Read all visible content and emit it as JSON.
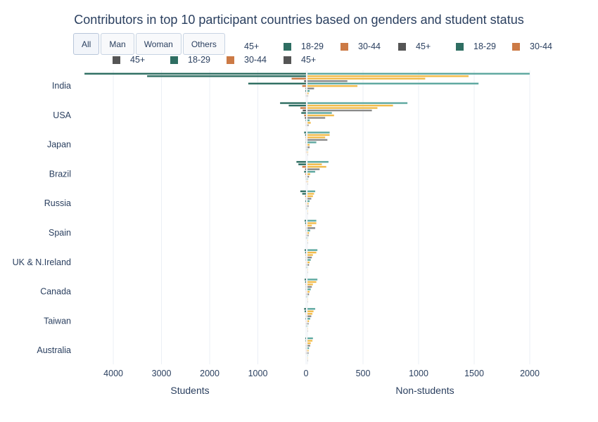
{
  "title": "Contributors in top 10 participant countries based on genders and student status",
  "buttons": [
    {
      "label": "All",
      "active": true
    },
    {
      "label": "Man",
      "active": false
    },
    {
      "label": "Woman",
      "active": false
    },
    {
      "label": "Others",
      "active": false
    }
  ],
  "colors": {
    "age_18_29": "#2e6e62",
    "age_30_44": "#cc7a45",
    "age_45_plus": "#555555",
    "stripe_light_teal": "#5ea8a0",
    "stripe_yellow": "#f2bb4a",
    "stripe_gray": "#8a8a8a"
  },
  "legend": [
    {
      "label": "45+",
      "color": "#555555",
      "row": 1
    },
    {
      "label": "18-29",
      "color": "#2e6e62",
      "row": 1
    },
    {
      "label": "30-44",
      "color": "#cc7a45",
      "row": 1
    },
    {
      "label": "45+",
      "color": "#555555",
      "row": 1
    },
    {
      "label": "18-29",
      "color": "#2e6e62",
      "row": 1
    },
    {
      "label": "30-44",
      "color": "#cc7a45",
      "row": 1
    },
    {
      "label": "45+",
      "color": "#555555",
      "row": 2
    },
    {
      "label": "18-29",
      "color": "#2e6e62",
      "row": 2
    },
    {
      "label": "30-44",
      "color": "#cc7a45",
      "row": 2
    },
    {
      "label": "45+",
      "color": "#555555",
      "row": 2
    }
  ],
  "chart_data": {
    "type": "bar",
    "orientation": "horizontal",
    "title": "Contributors in top 10 participant countries based on genders and student status",
    "categories": [
      "India",
      "USA",
      "Japan",
      "Brazil",
      "Russia",
      "Spain",
      "UK & N.Ireland",
      "Canada",
      "Taiwan",
      "Australia"
    ],
    "left_axis": {
      "label": "Students",
      "range": [
        4600,
        0
      ],
      "ticks": [
        4000,
        3000,
        2000,
        1000,
        0
      ],
      "tick_labels": [
        "4000",
        "3000",
        "2000",
        "1000",
        "0"
      ]
    },
    "right_axis": {
      "label": "Non-students",
      "range": [
        0,
        2000
      ],
      "ticks": [
        0,
        500,
        1000,
        1500,
        2000
      ],
      "tick_labels": [
        "0",
        "500",
        "1000",
        "1500",
        "2000"
      ]
    },
    "grid": true,
    "legend_position": "top",
    "series_order": [
      "all_total",
      "man_18_29",
      "man_30_44",
      "man_45_plus",
      "woman_18_29",
      "woman_30_44",
      "woman_45_plus",
      "others_18_29",
      "others_30_44",
      "others_45_plus"
    ],
    "students": {
      "India": [
        4600,
        3300,
        300,
        40,
        1200,
        80,
        10,
        15,
        5,
        2
      ],
      "USA": [
        540,
        360,
        120,
        70,
        100,
        40,
        25,
        10,
        5,
        3
      ],
      "Japan": [
        40,
        20,
        10,
        5,
        8,
        4,
        2,
        1,
        1,
        0
      ],
      "Brazil": [
        200,
        160,
        80,
        20,
        40,
        15,
        5,
        2,
        1,
        0
      ],
      "Russia": [
        120,
        80,
        20,
        5,
        15,
        5,
        2,
        1,
        0,
        0
      ],
      "Spain": [
        30,
        20,
        8,
        3,
        6,
        2,
        1,
        1,
        0,
        0
      ],
      "UK & N.Ireland": [
        30,
        20,
        10,
        5,
        6,
        3,
        1,
        1,
        0,
        0
      ],
      "Canada": [
        30,
        20,
        10,
        5,
        6,
        3,
        1,
        1,
        0,
        0
      ],
      "Taiwan": [
        40,
        30,
        8,
        3,
        10,
        3,
        1,
        1,
        0,
        0
      ],
      "Australia": [
        15,
        10,
        5,
        3,
        3,
        1,
        1,
        0,
        0,
        0
      ]
    },
    "non_students": {
      "India": [
        2000,
        1450,
        1060,
        360,
        1540,
        450,
        60,
        20,
        10,
        5
      ],
      "USA": [
        900,
        770,
        630,
        580,
        220,
        240,
        160,
        20,
        30,
        10
      ],
      "Japan": [
        200,
        200,
        160,
        180,
        80,
        20,
        20,
        5,
        5,
        2
      ],
      "Brazil": [
        190,
        130,
        170,
        110,
        70,
        25,
        15,
        5,
        5,
        2
      ],
      "Russia": [
        70,
        60,
        50,
        35,
        20,
        10,
        10,
        3,
        2,
        1
      ],
      "Spain": [
        80,
        80,
        40,
        70,
        25,
        15,
        10,
        3,
        2,
        1
      ],
      "UK & N.Ireland": [
        90,
        80,
        50,
        40,
        30,
        20,
        15,
        3,
        2,
        1
      ],
      "Canada": [
        90,
        80,
        50,
        40,
        30,
        20,
        15,
        3,
        2,
        1
      ],
      "Taiwan": [
        70,
        55,
        45,
        35,
        25,
        15,
        10,
        3,
        2,
        1
      ],
      "Australia": [
        50,
        45,
        30,
        25,
        15,
        10,
        10,
        2,
        1,
        1
      ]
    }
  }
}
